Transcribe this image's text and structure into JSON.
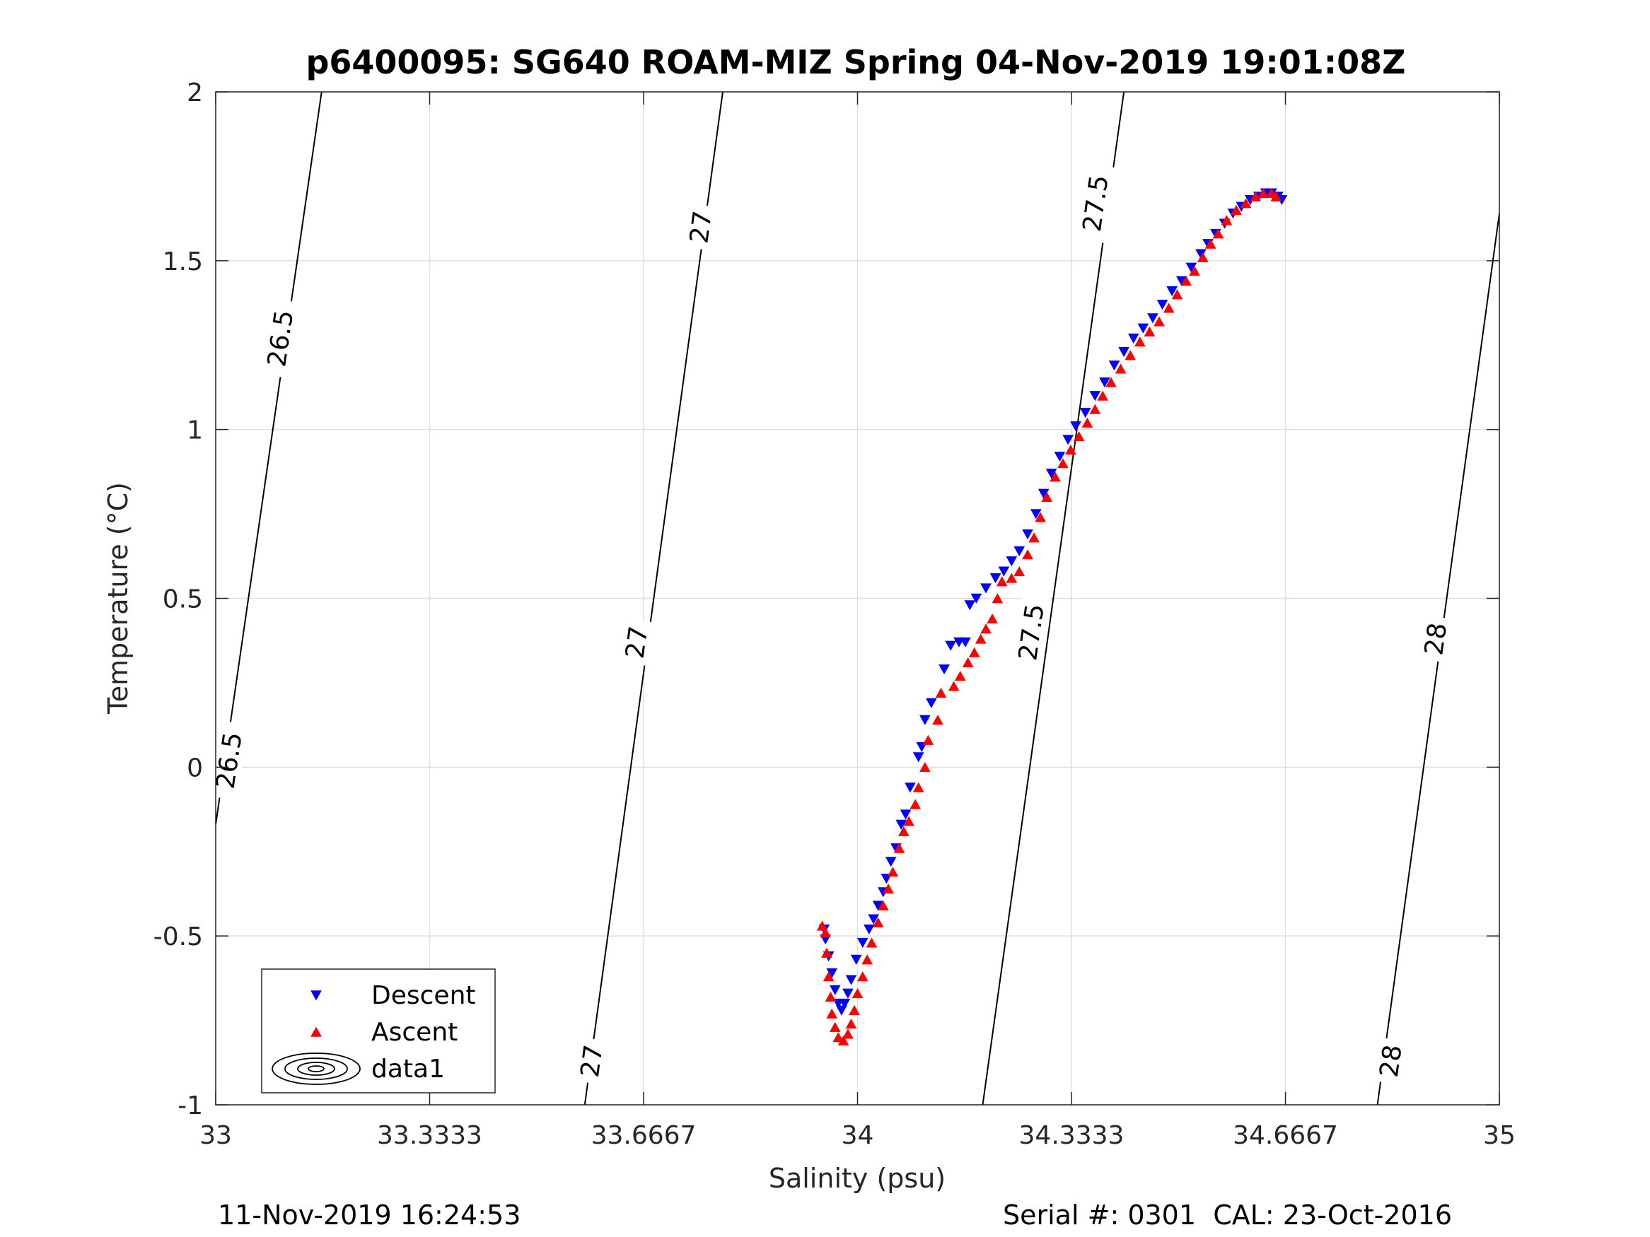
{
  "chart_data": {
    "type": "scatter",
    "title": "p6400095: SG640 ROAM-MIZ Spring 04-Nov-2019 19:01:08Z",
    "xlabel": "Salinity (psu)",
    "ylabel": "Temperature (°C)",
    "xlim": [
      33,
      35
    ],
    "ylim": [
      -1,
      2
    ],
    "x_ticks": [
      33,
      33.3333,
      33.6667,
      34,
      34.3333,
      34.6667,
      35
    ],
    "x_tick_labels": [
      "33",
      "33.3333",
      "33.6667",
      "34",
      "34.3333",
      "34.6667",
      "35"
    ],
    "y_ticks": [
      -1,
      -0.5,
      0,
      0.5,
      1,
      1.5,
      2
    ],
    "y_tick_labels": [
      "-1",
      "-0.5",
      "0",
      "0.5",
      "1",
      "1.5",
      "2"
    ],
    "grid": true,
    "legend_position": "bottom-left",
    "legend": [
      "Descent",
      "Ascent",
      "data1"
    ],
    "density_contours": [
      {
        "level": "26.5",
        "points": [
          [
            33.0,
            -0.17
          ],
          [
            33.165,
            2.0
          ]
        ],
        "labels": [
          {
            "text": "26.5",
            "x": 33.02,
            "y": 0.02
          },
          {
            "text": "26.5",
            "x": 33.1,
            "y": 1.27
          }
        ]
      },
      {
        "level": "27",
        "points": [
          [
            33.575,
            -1.0
          ],
          [
            33.79,
            2.0
          ]
        ],
        "labels": [
          {
            "text": "27",
            "x": 33.585,
            "y": -0.87
          },
          {
            "text": "27",
            "x": 33.655,
            "y": 0.37
          },
          {
            "text": "27",
            "x": 33.755,
            "y": 1.6
          }
        ]
      },
      {
        "level": "27.5",
        "points": [
          [
            34.195,
            -1.0
          ],
          [
            34.415,
            2.0
          ]
        ],
        "labels": [
          {
            "text": "27.5",
            "x": 34.27,
            "y": 0.4
          },
          {
            "text": "27.5",
            "x": 34.37,
            "y": 1.67
          }
        ]
      },
      {
        "level": "28",
        "points": [
          [
            34.81,
            -1.0
          ],
          [
            35.0,
            1.64
          ]
        ],
        "labels": [
          {
            "text": "28",
            "x": 34.83,
            "y": -0.87
          },
          {
            "text": "28",
            "x": 34.9,
            "y": 0.38
          }
        ]
      }
    ],
    "series": [
      {
        "name": "Descent",
        "color": "#0000ff",
        "marker": "triangle-down",
        "points": [
          [
            34.661,
            1.68
          ],
          [
            34.655,
            1.69
          ],
          [
            34.645,
            1.7
          ],
          [
            34.636,
            1.7
          ],
          [
            34.625,
            1.69
          ],
          [
            34.612,
            1.68
          ],
          [
            34.598,
            1.66
          ],
          [
            34.585,
            1.64
          ],
          [
            34.572,
            1.61
          ],
          [
            34.558,
            1.58
          ],
          [
            34.546,
            1.55
          ],
          [
            34.535,
            1.52
          ],
          [
            34.52,
            1.48
          ],
          [
            34.505,
            1.44
          ],
          [
            34.49,
            1.41
          ],
          [
            34.475,
            1.37
          ],
          [
            34.46,
            1.33
          ],
          [
            34.445,
            1.3
          ],
          [
            34.43,
            1.27
          ],
          [
            34.415,
            1.23
          ],
          [
            34.4,
            1.19
          ],
          [
            34.385,
            1.14
          ],
          [
            34.37,
            1.1
          ],
          [
            34.355,
            1.05
          ],
          [
            34.34,
            1.01
          ],
          [
            34.328,
            0.97
          ],
          [
            34.315,
            0.92
          ],
          [
            34.302,
            0.87
          ],
          [
            34.29,
            0.81
          ],
          [
            34.278,
            0.75
          ],
          [
            34.265,
            0.69
          ],
          [
            34.252,
            0.64
          ],
          [
            34.24,
            0.61
          ],
          [
            34.228,
            0.58
          ],
          [
            34.215,
            0.56
          ],
          [
            34.2,
            0.53
          ],
          [
            34.185,
            0.5
          ],
          [
            34.175,
            0.48
          ],
          [
            34.168,
            0.37
          ],
          [
            34.158,
            0.37
          ],
          [
            34.145,
            0.36
          ],
          [
            34.135,
            0.29
          ],
          [
            34.115,
            0.19
          ],
          [
            34.105,
            0.14
          ],
          [
            34.1,
            0.06
          ],
          [
            34.095,
            0.03
          ],
          [
            34.082,
            -0.06
          ],
          [
            34.075,
            -0.14
          ],
          [
            34.068,
            -0.17
          ],
          [
            34.06,
            -0.24
          ],
          [
            34.052,
            -0.28
          ],
          [
            34.045,
            -0.33
          ],
          [
            34.04,
            -0.37
          ],
          [
            34.032,
            -0.41
          ],
          [
            34.025,
            -0.45
          ],
          [
            34.018,
            -0.48
          ],
          [
            34.008,
            -0.52
          ],
          [
            33.998,
            -0.57
          ],
          [
            33.99,
            -0.63
          ],
          [
            33.985,
            -0.67
          ],
          [
            33.98,
            -0.7
          ],
          [
            33.975,
            -0.72
          ],
          [
            33.97,
            -0.7
          ],
          [
            33.965,
            -0.66
          ],
          [
            33.96,
            -0.61
          ],
          [
            33.955,
            -0.56
          ],
          [
            33.95,
            -0.51
          ],
          [
            33.948,
            -0.48
          ]
        ]
      },
      {
        "name": "Ascent",
        "color": "#ff0000",
        "marker": "triangle-up",
        "points": [
          [
            34.652,
            1.69
          ],
          [
            34.645,
            1.7
          ],
          [
            34.632,
            1.7
          ],
          [
            34.62,
            1.69
          ],
          [
            34.605,
            1.67
          ],
          [
            34.59,
            1.65
          ],
          [
            34.575,
            1.62
          ],
          [
            34.562,
            1.58
          ],
          [
            34.55,
            1.55
          ],
          [
            34.538,
            1.51
          ],
          [
            34.525,
            1.47
          ],
          [
            34.512,
            1.44
          ],
          [
            34.498,
            1.4
          ],
          [
            34.485,
            1.36
          ],
          [
            34.47,
            1.32
          ],
          [
            34.455,
            1.29
          ],
          [
            34.44,
            1.26
          ],
          [
            34.425,
            1.22
          ],
          [
            34.41,
            1.18
          ],
          [
            34.395,
            1.14
          ],
          [
            34.382,
            1.1
          ],
          [
            34.37,
            1.06
          ],
          [
            34.358,
            1.02
          ],
          [
            34.345,
            0.98
          ],
          [
            34.332,
            0.94
          ],
          [
            34.32,
            0.9
          ],
          [
            34.308,
            0.86
          ],
          [
            34.295,
            0.8
          ],
          [
            34.285,
            0.74
          ],
          [
            34.275,
            0.68
          ],
          [
            34.265,
            0.63
          ],
          [
            34.252,
            0.58
          ],
          [
            34.24,
            0.56
          ],
          [
            34.225,
            0.55
          ],
          [
            34.218,
            0.5
          ],
          [
            34.21,
            0.44
          ],
          [
            34.2,
            0.41
          ],
          [
            34.192,
            0.38
          ],
          [
            34.182,
            0.34
          ],
          [
            34.172,
            0.31
          ],
          [
            34.16,
            0.27
          ],
          [
            34.15,
            0.24
          ],
          [
            34.13,
            0.22
          ],
          [
            34.125,
            0.14
          ],
          [
            34.11,
            0.08
          ],
          [
            34.105,
            0.0
          ],
          [
            34.095,
            -0.06
          ],
          [
            34.09,
            -0.11
          ],
          [
            34.08,
            -0.16
          ],
          [
            34.072,
            -0.19
          ],
          [
            34.065,
            -0.24
          ],
          [
            34.055,
            -0.31
          ],
          [
            34.048,
            -0.36
          ],
          [
            34.04,
            -0.41
          ],
          [
            34.032,
            -0.46
          ],
          [
            34.022,
            -0.52
          ],
          [
            34.015,
            -0.57
          ],
          [
            34.008,
            -0.62
          ],
          [
            34.0,
            -0.67
          ],
          [
            33.995,
            -0.72
          ],
          [
            33.99,
            -0.76
          ],
          [
            33.985,
            -0.79
          ],
          [
            33.978,
            -0.81
          ],
          [
            33.97,
            -0.8
          ],
          [
            33.965,
            -0.77
          ],
          [
            33.96,
            -0.73
          ],
          [
            33.958,
            -0.68
          ],
          [
            33.955,
            -0.62
          ],
          [
            33.952,
            -0.55
          ],
          [
            33.95,
            -0.49
          ],
          [
            33.945,
            -0.47
          ]
        ]
      }
    ]
  },
  "footer": {
    "left": "11-Nov-2019 16:24:53",
    "right": "Serial #: 0301  CAL: 23-Oct-2016"
  }
}
